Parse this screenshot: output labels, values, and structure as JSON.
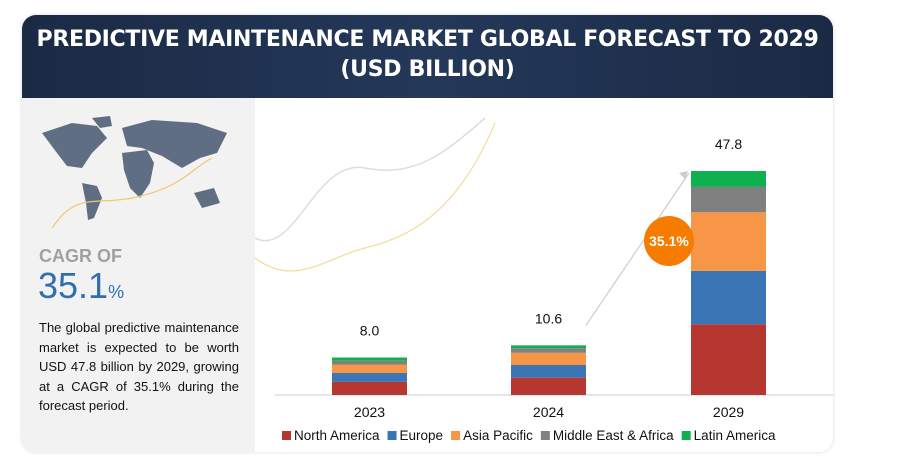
{
  "title": "PREDICTIVE MAINTENANCE MARKET GLOBAL FORECAST TO 2029",
  "subtitle": "(USD BILLION)",
  "cagr_label": "CAGR OF",
  "cagr_value": "35.1",
  "cagr_unit": "%",
  "description": "The global predictive maintenance market is expected to be worth USD 47.8 billion by 2029, growing at a CAGR of 35.1% during the forecast period.",
  "chart_data": {
    "type": "bar",
    "stacked": true,
    "categories": [
      "2023",
      "2024",
      "2029"
    ],
    "totals": [
      "8.0",
      "10.6",
      "47.8"
    ],
    "series": [
      {
        "name": "North America",
        "color": "#b5372f",
        "values": [
          2.8,
          3.7,
          15.1
        ]
      },
      {
        "name": "Europe",
        "color": "#3a76b5",
        "values": [
          1.9,
          2.7,
          11.4
        ]
      },
      {
        "name": "Asia Pacific",
        "color": "#f79646",
        "values": [
          1.8,
          2.6,
          12.5
        ]
      },
      {
        "name": "Middle East & Africa",
        "color": "#808080",
        "values": [
          0.8,
          1.0,
          5.4
        ]
      },
      {
        "name": "Latin America",
        "color": "#0fb050",
        "values": [
          0.7,
          0.6,
          3.4
        ]
      }
    ],
    "annotation": "35.1%",
    "annotation_color": "#f57c00",
    "legend_position": "bottom",
    "grid": false
  }
}
